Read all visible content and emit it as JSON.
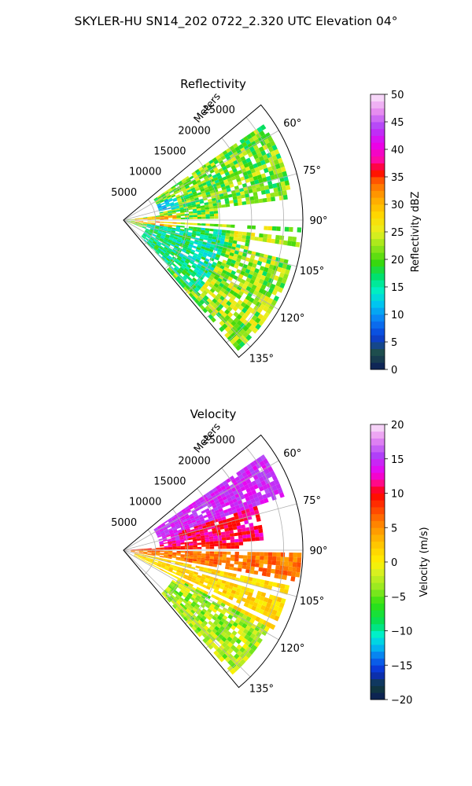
{
  "suptitle": "SKYLER-HU  SN14_202  0722_2.320 UTC Elevation 04°",
  "chart_data": [
    {
      "type": "heatmap",
      "title": "Reflectivity",
      "radial_label": "Meters",
      "radial_ticks": [
        5000,
        10000,
        15000,
        20000,
        25000
      ],
      "radial_tick_labels": [
        "5000",
        "10000",
        "15000",
        "20000",
        "25000"
      ],
      "rlim": [
        0,
        28000
      ],
      "angle_ticks": [
        60,
        75,
        90,
        105,
        120,
        135
      ],
      "angle_tick_labels": [
        "60°",
        "75°",
        "90°",
        "105°",
        "120°",
        "135°"
      ],
      "thetalim": [
        50,
        140
      ],
      "grid": true,
      "colorbar": {
        "label": "Reflectivity dBZ",
        "range": [
          0,
          50
        ],
        "ticks": [
          0,
          5,
          10,
          15,
          20,
          25,
          30,
          35,
          40,
          45,
          50
        ],
        "tick_labels": [
          "0",
          "5",
          "10",
          "15",
          "20",
          "25",
          "30",
          "35",
          "40",
          "45",
          "50"
        ]
      },
      "regions": [
        {
          "theta": [
            56,
            82
          ],
          "r": [
            5500,
            26500
          ],
          "value": 21,
          "spread": 5
        },
        {
          "theta": [
            82,
            89
          ],
          "r": [
            700,
            15000
          ],
          "value": 22,
          "spread": 6
        },
        {
          "theta": [
            92,
            99
          ],
          "r": [
            1000,
            28000
          ],
          "value": 23,
          "spread": 5
        },
        {
          "theta": [
            99,
            112
          ],
          "r": [
            700,
            20000
          ],
          "value": 21,
          "spread": 6
        },
        {
          "theta": [
            104,
            138
          ],
          "r": [
            10000,
            27000
          ],
          "value": 22,
          "spread": 5
        },
        {
          "theta": [
            95,
            135
          ],
          "r": [
            4000,
            16000
          ],
          "value": 16,
          "spread": 4
        }
      ],
      "highlights": [
        {
          "theta": [
            66,
            78
          ],
          "r": [
            4500,
            9000
          ],
          "value": 12,
          "spread": 3
        },
        {
          "theta": [
            84,
            99
          ],
          "r": [
            2000,
            8000
          ],
          "value": 30,
          "spread": 5
        }
      ],
      "gaps_theta": [
        89.2,
        90.8,
        94.5,
        102,
        106.5,
        115
      ]
    },
    {
      "type": "heatmap",
      "title": "Velocity",
      "radial_label": "Meters",
      "radial_ticks": [
        5000,
        10000,
        15000,
        20000,
        25000
      ],
      "radial_tick_labels": [
        "5000",
        "10000",
        "15000",
        "20000",
        "25000"
      ],
      "rlim": [
        0,
        28000
      ],
      "angle_ticks": [
        60,
        75,
        90,
        105,
        120,
        135
      ],
      "angle_tick_labels": [
        "60°",
        "75°",
        "90°",
        "105°",
        "120°",
        "135°"
      ],
      "thetalim": [
        50,
        140
      ],
      "grid": true,
      "colorbar": {
        "label": "Velocity (m/s)",
        "range": [
          -20,
          20
        ],
        "ticks": [
          -20,
          -15,
          -10,
          -5,
          0,
          5,
          10,
          15,
          20
        ],
        "tick_labels": [
          "−20",
          "−15",
          "−10",
          "−5",
          "0",
          "5",
          "10",
          "15",
          "20"
        ]
      },
      "regions": [
        {
          "theta": [
            56,
            72
          ],
          "r": [
            5500,
            26500
          ],
          "value": 14.5,
          "spread": 1.5
        },
        {
          "theta": [
            72,
            86
          ],
          "r": [
            5500,
            22000
          ],
          "value": 11,
          "spread": 2
        },
        {
          "theta": [
            86,
            89.3
          ],
          "r": [
            700,
            19000
          ],
          "value": 9,
          "spread": 1.5
        },
        {
          "theta": [
            90.7,
            100
          ],
          "r": [
            1000,
            28000
          ],
          "value": 6,
          "spread": 2
        },
        {
          "theta": [
            100,
            118
          ],
          "r": [
            1500,
            26500
          ],
          "value": 1.5,
          "spread": 2
        },
        {
          "theta": [
            118,
            138
          ],
          "r": [
            9000,
            26000
          ],
          "value": -3,
          "spread": 3
        }
      ],
      "highlights": [
        {
          "theta": [
            72,
            80
          ],
          "r": [
            3500,
            9000
          ],
          "value": 14,
          "spread": 2
        }
      ],
      "gaps_theta": [
        89.3,
        90.7,
        101,
        106,
        116
      ]
    }
  ]
}
